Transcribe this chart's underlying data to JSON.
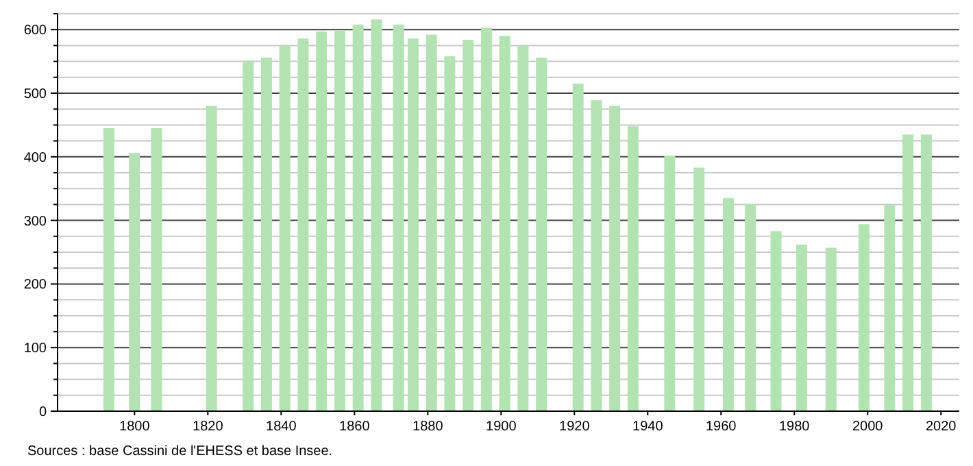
{
  "chart_data": {
    "type": "bar",
    "color": "#b3e3b3",
    "x": [
      1793,
      1800,
      1806,
      1821,
      1831,
      1836,
      1841,
      1846,
      1851,
      1856,
      1861,
      1866,
      1872,
      1876,
      1881,
      1886,
      1891,
      1896,
      1901,
      1906,
      1911,
      1921,
      1926,
      1931,
      1936,
      1946,
      1954,
      1962,
      1968,
      1975,
      1982,
      1990,
      1999,
      2006,
      2011,
      2016
    ],
    "values": [
      445,
      406,
      445,
      480,
      551,
      556,
      575,
      586,
      597,
      599,
      608,
      616,
      608,
      586,
      592,
      558,
      584,
      603,
      590,
      575,
      556,
      515,
      489,
      480,
      448,
      402,
      383,
      335,
      326,
      283,
      262,
      257,
      294,
      324,
      435,
      435
    ],
    "xlim": [
      1779,
      2025
    ],
    "xticks": [
      1800,
      1820,
      1840,
      1860,
      1880,
      1900,
      1920,
      1940,
      1960,
      1980,
      2000,
      2020
    ],
    "ylim": [
      0,
      625
    ],
    "yticks": [
      0,
      {
        "value": 25,
        "label": null
      },
      {
        "value": 50,
        "label": null
      },
      {
        "value": 75,
        "label": null
      },
      100,
      {
        "value": 125,
        "label": null
      },
      {
        "value": 150,
        "label": null
      },
      {
        "value": 175,
        "label": null
      },
      200,
      {
        "value": 225,
        "label": null
      },
      {
        "value": 250,
        "label": null
      },
      {
        "value": 275,
        "label": null
      },
      300,
      {
        "value": 325,
        "label": null
      },
      {
        "value": 350,
        "label": null
      },
      {
        "value": 375,
        "label": null
      },
      400,
      {
        "value": 425,
        "label": null
      },
      {
        "value": 450,
        "label": null
      },
      {
        "value": 475,
        "label": null
      },
      500,
      {
        "value": 525,
        "label": null
      },
      {
        "value": 550,
        "label": null
      },
      {
        "value": 575,
        "label": null
      },
      600,
      {
        "value": 625,
        "label": null
      }
    ],
    "grid": true,
    "annotations": [
      "Sources : base Cassini de l'EHESS et base Insee."
    ]
  }
}
